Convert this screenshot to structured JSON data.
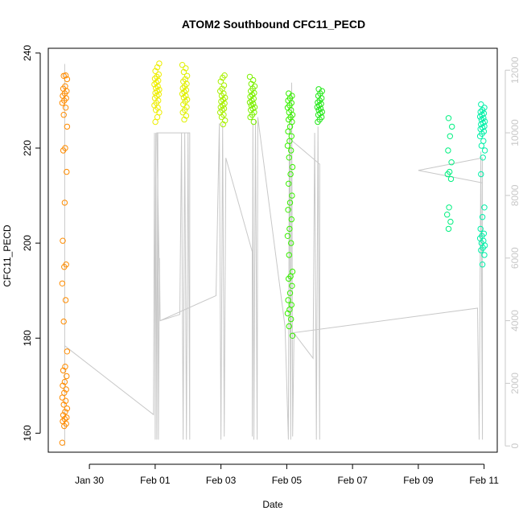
{
  "chart_data": {
    "type": "scatter",
    "title": "ATOM2 Southbound CFC11_PECD",
    "xlabel": "Date",
    "ylabel": "CFC11_PECD",
    "x_tick_labels": [
      "Jan 30",
      "Feb 01",
      "Feb 03",
      "Feb 05",
      "Feb 07",
      "Feb 09",
      "Feb 11"
    ],
    "x_tick_days": [
      30,
      32,
      34,
      36,
      38,
      40,
      42
    ],
    "xlim_days": [
      28.75,
      42.4
    ],
    "ylim": [
      156,
      241
    ],
    "y_ticks": [
      160,
      180,
      200,
      220,
      240
    ],
    "y_tick_labels": [
      "160",
      "180",
      "200",
      "220",
      "240"
    ],
    "y2lim": [
      -200,
      12700
    ],
    "y2_ticks": [
      0,
      2000,
      4000,
      6000,
      8000,
      10000,
      12000
    ],
    "y2_tick_labels": [
      "0",
      "2000",
      "4000",
      "6000",
      "8000",
      "10000",
      "12000"
    ],
    "clusters": [
      {
        "name": "cluster-1",
        "day_center": 29.25,
        "color": "#FF8C00",
        "y_values": [
          158,
          161.5,
          162,
          162.5,
          163,
          163.3,
          163.8,
          164.5,
          165.2,
          166,
          166.8,
          167.5,
          168.5,
          169.2,
          170,
          170.8,
          172,
          173.2,
          174,
          177.2,
          183.5,
          188,
          191.5,
          195,
          195.5,
          200.5,
          208.5,
          215,
          219.5,
          220,
          224.5,
          227,
          228.5,
          229.5,
          230,
          230.5,
          231,
          231.5,
          232,
          232.5,
          233,
          234.5,
          235.2,
          235.3
        ]
      },
      {
        "name": "cluster-2",
        "day_center": 32.05,
        "color": "#EEEE00",
        "y_values": [
          225.5,
          226.5,
          227.5,
          228,
          228.5,
          229,
          229.5,
          230,
          230.5,
          231,
          231.3,
          231.6,
          232,
          232.3,
          232.6,
          233,
          233.4,
          233.8,
          234.2,
          234.6,
          235,
          235.5,
          236.2,
          237,
          237.8
        ]
      },
      {
        "name": "cluster-3",
        "day_center": 32.9,
        "color": "#E0F000",
        "y_values": [
          226,
          226.8,
          227.5,
          228,
          228.6,
          229.2,
          229.8,
          230.2,
          230.6,
          231,
          231.4,
          231.8,
          232.2,
          232.6,
          233,
          233.5,
          234,
          234.5,
          235.2,
          236,
          236.8,
          237.5
        ]
      },
      {
        "name": "cluster-4",
        "day_center": 34.05,
        "color": "#A8F000",
        "y_values": [
          225,
          225.8,
          226.5,
          227,
          227.5,
          228,
          228.3,
          228.6,
          229,
          229.4,
          229.8,
          230.2,
          230.6,
          231,
          231.5,
          232,
          232.5,
          233.2,
          234,
          234.8,
          235.3
        ]
      },
      {
        "name": "cluster-5",
        "day_center": 34.95,
        "color": "#7CF000",
        "y_values": [
          225.5,
          226.5,
          227,
          227.5,
          228,
          228.3,
          228.6,
          229,
          229.3,
          229.6,
          230,
          230.4,
          230.8,
          231.2,
          231.6,
          232,
          232.5,
          233,
          233.5,
          234.3,
          235
        ]
      },
      {
        "name": "cluster-6",
        "day_center": 36.1,
        "color": "#38F000",
        "y_values": [
          180.5,
          182.5,
          184,
          185.2,
          186,
          187,
          188,
          189.5,
          191,
          192.5,
          193,
          194,
          197.5,
          200,
          201.5,
          203,
          205,
          207,
          208.5,
          210,
          212.5,
          214.5,
          216,
          218,
          219.5,
          220.5,
          221.5,
          222.5,
          223.5,
          224.5,
          225.5,
          226,
          226.5,
          227,
          227.5,
          228,
          228.5,
          229,
          229.5,
          230,
          230.5,
          231,
          231.5
        ]
      },
      {
        "name": "cluster-7",
        "day_center": 37.0,
        "color": "#22E818",
        "y_values": [
          225.5,
          226,
          226.5,
          227,
          227.3,
          227.6,
          228,
          228.3,
          228.6,
          229,
          229.3,
          229.6,
          230,
          230.5,
          231,
          231.5,
          232,
          232.4
        ]
      },
      {
        "name": "cluster-8",
        "day_center": 40.95,
        "color": "#00F080",
        "y_values": [
          203,
          204.5,
          206,
          207.5,
          213.5,
          214.5,
          215,
          217,
          219.5,
          222.5,
          224.5,
          226.3
        ]
      },
      {
        "name": "cluster-9",
        "day_center": 41.95,
        "color": "#00F0A8",
        "y_values": [
          195.5,
          197.5,
          198.5,
          199,
          199.5,
          200,
          200.5,
          201,
          201.5,
          202,
          203,
          205.5,
          207.5,
          214.5,
          218,
          219.5,
          220.5,
          221.5,
          222.5,
          223,
          223.5,
          224,
          224.3,
          224.6,
          225,
          225.3,
          225.6,
          226,
          226.3,
          226.6,
          227,
          227.3,
          227.6,
          228,
          228.5,
          229.2
        ]
      }
    ],
    "secondary_line": {
      "color": "#c8c8c8",
      "points_day_y2": [
        [
          29.25,
          12200
        ],
        [
          29.25,
          0
        ],
        [
          29.25,
          3200
        ],
        [
          31.95,
          1000
        ],
        [
          31.98,
          10000
        ],
        [
          32.0,
          200
        ],
        [
          32.02,
          10000
        ],
        [
          32.05,
          200
        ],
        [
          32.08,
          10000
        ],
        [
          32.1,
          200
        ],
        [
          32.13,
          6000
        ],
        [
          32.15,
          4000
        ],
        [
          32.75,
          4200
        ],
        [
          32.8,
          10000
        ],
        [
          32.85,
          200
        ],
        [
          32.9,
          10000
        ],
        [
          32.95,
          200
        ],
        [
          33.0,
          10000
        ],
        [
          33.05,
          200
        ],
        [
          33.05,
          10000
        ],
        [
          32.05,
          10000
        ],
        [
          32.15,
          4000
        ],
        [
          33.85,
          4800
        ],
        [
          33.95,
          10300
        ],
        [
          34.0,
          200
        ],
        [
          34.05,
          10300
        ],
        [
          34.1,
          300
        ],
        [
          34.15,
          9200
        ],
        [
          34.95,
          6200
        ],
        [
          34.95,
          300
        ],
        [
          34.97,
          10300
        ],
        [
          35.0,
          200
        ],
        [
          35.05,
          10400
        ],
        [
          35.1,
          200
        ],
        [
          35.12,
          10500
        ],
        [
          35.95,
          3800
        ],
        [
          36.05,
          200
        ],
        [
          36.08,
          10300
        ],
        [
          36.12,
          200
        ],
        [
          36.15,
          11600
        ],
        [
          36.18,
          300
        ],
        [
          36.22,
          3600
        ],
        [
          36.8,
          2800
        ],
        [
          36.85,
          10000
        ],
        [
          36.9,
          200
        ],
        [
          36.95,
          10200
        ],
        [
          37.0,
          200
        ],
        [
          37.0,
          9000
        ],
        [
          36.1,
          9800
        ],
        [
          36.1,
          3600
        ],
        [
          41.8,
          4400
        ],
        [
          41.85,
          200
        ],
        [
          41.9,
          9400
        ],
        [
          41.95,
          200
        ],
        [
          41.95,
          8600
        ],
        [
          41.95,
          9200
        ],
        [
          40.0,
          8800
        ],
        [
          41.95,
          8400
        ]
      ]
    }
  }
}
